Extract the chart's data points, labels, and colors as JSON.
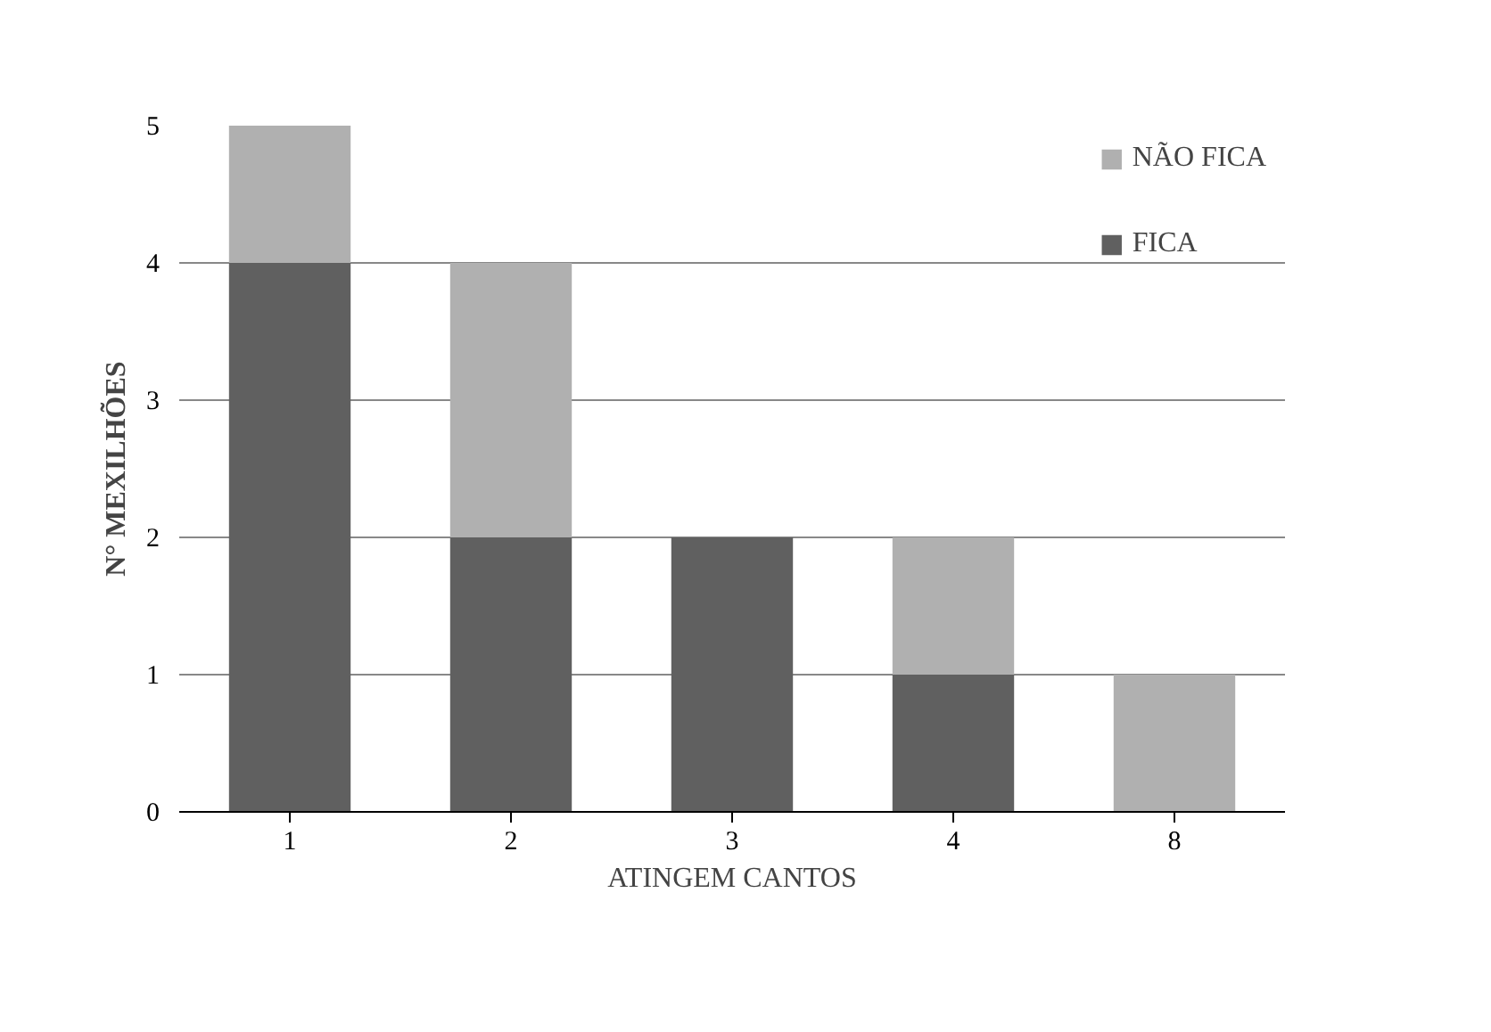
{
  "chart_data": {
    "type": "bar",
    "stacked": true,
    "xlabel": "ATINGEM CANTOS",
    "ylabel": "N° MEXILHÕES",
    "categories": [
      "1",
      "2",
      "3",
      "4",
      "8"
    ],
    "series": [
      {
        "name": "FICA",
        "color": "#606060",
        "values": [
          4,
          2,
          2,
          1,
          0
        ]
      },
      {
        "name": "NÃO FICA",
        "color": "#b0b0b0",
        "values": [
          1,
          2,
          0,
          1,
          1
        ]
      }
    ],
    "ylim": [
      0,
      5
    ],
    "yticks": [
      0,
      1,
      2,
      3,
      4,
      5
    ],
    "grid": "y",
    "legend": "top right"
  }
}
